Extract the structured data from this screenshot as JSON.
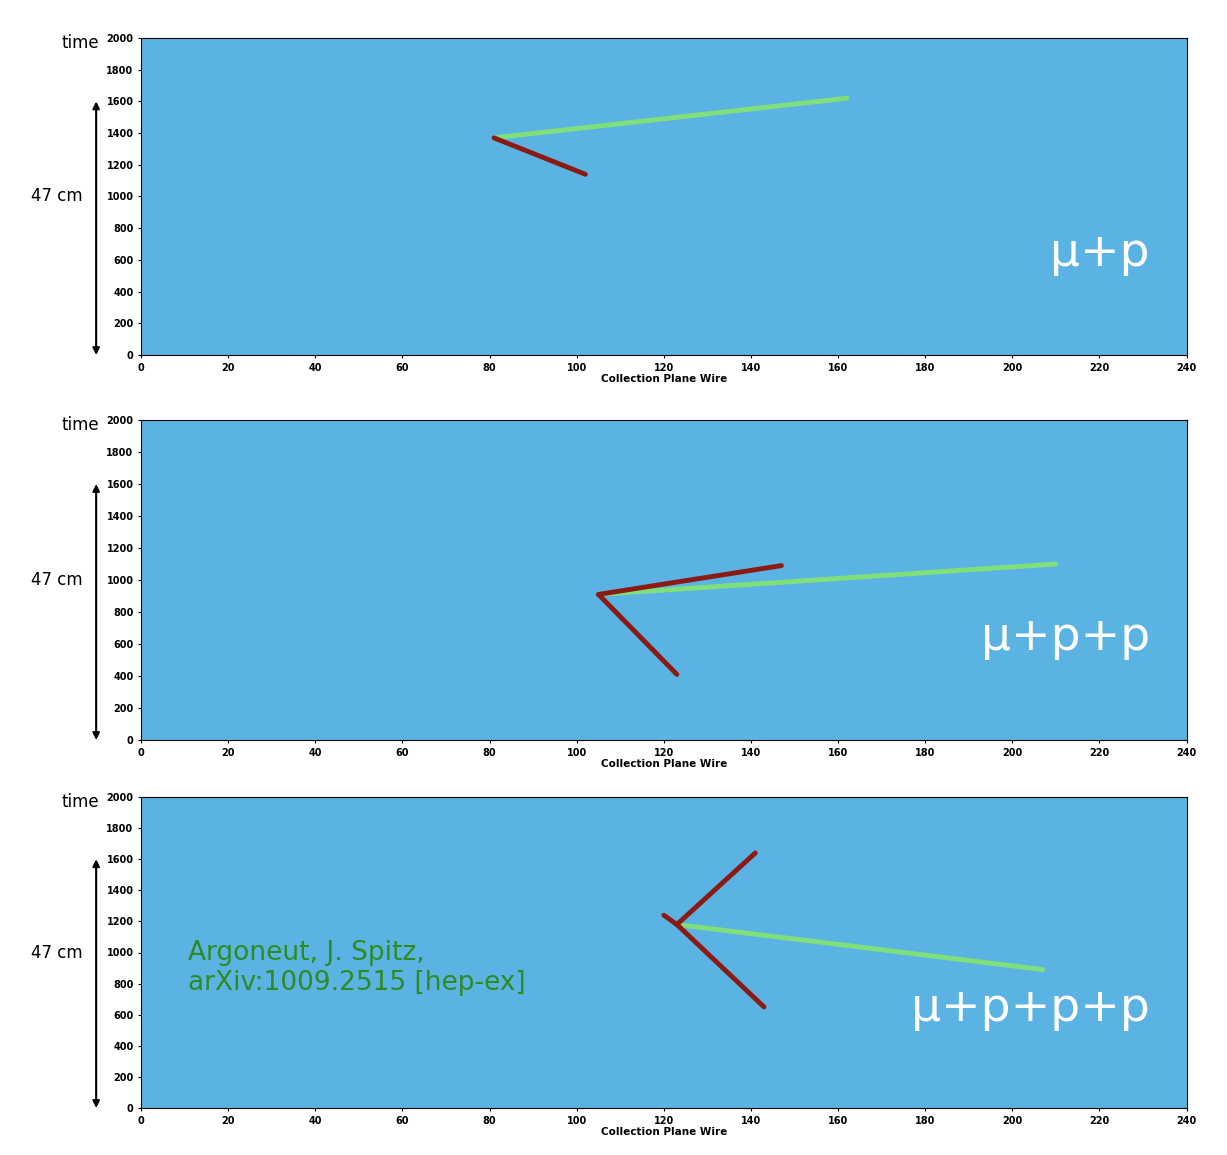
{
  "chart_data": [
    {
      "type": "line",
      "xlabel": "Collection Plane Wire",
      "ylabel": "time",
      "annotation": "μ+p",
      "scale_bar": {
        "label": "47 cm",
        "from": 0,
        "to": 1600
      },
      "xlim": [
        0,
        240
      ],
      "xticks": [
        0,
        20,
        40,
        60,
        80,
        100,
        120,
        140,
        160,
        180,
        200,
        220,
        240
      ],
      "ylim": [
        0,
        2000
      ],
      "yticks": [
        0,
        200,
        400,
        600,
        800,
        1000,
        1200,
        1400,
        1600,
        1800,
        2000
      ],
      "grid": false,
      "series": [
        {
          "color": "#7fe07a",
          "x": [
            81,
            162
          ],
          "values": [
            1370,
            1620
          ]
        },
        {
          "color": "#8b1a12",
          "x": [
            81,
            102
          ],
          "values": [
            1370,
            1140
          ]
        }
      ]
    },
    {
      "type": "line",
      "xlabel": "Collection Plane Wire",
      "ylabel": "time",
      "annotation": "μ+p+p",
      "scale_bar": {
        "label": "47 cm",
        "from": 0,
        "to": 1600
      },
      "xlim": [
        0,
        240
      ],
      "xticks": [
        0,
        20,
        40,
        60,
        80,
        100,
        120,
        140,
        160,
        180,
        200,
        220,
        240
      ],
      "ylim": [
        0,
        2000
      ],
      "yticks": [
        0,
        200,
        400,
        600,
        800,
        1000,
        1200,
        1400,
        1600,
        1800,
        2000
      ],
      "grid": false,
      "series": [
        {
          "color": "#7fe07a",
          "x": [
            105,
            210
          ],
          "values": [
            910,
            1100
          ]
        },
        {
          "color": "#8b1a12",
          "x": [
            105,
            147
          ],
          "values": [
            910,
            1090
          ]
        },
        {
          "color": "#8b1a12",
          "x": [
            105,
            123
          ],
          "values": [
            910,
            410
          ]
        }
      ]
    },
    {
      "type": "line",
      "xlabel": "Collection Plane Wire",
      "ylabel": "time",
      "annotation": "μ+p+p+p",
      "note": "Argoneut, J. Spitz,\narXiv:1009.2515 [hep-ex]",
      "scale_bar": {
        "label": "47 cm",
        "from": 0,
        "to": 1600
      },
      "xlim": [
        0,
        240
      ],
      "xticks": [
        0,
        20,
        40,
        60,
        80,
        100,
        120,
        140,
        160,
        180,
        200,
        220,
        240
      ],
      "ylim": [
        0,
        2000
      ],
      "yticks": [
        0,
        200,
        400,
        600,
        800,
        1000,
        1200,
        1400,
        1600,
        1800,
        2000
      ],
      "grid": false,
      "series": [
        {
          "color": "#7fe07a",
          "x": [
            123,
            207
          ],
          "values": [
            1180,
            890
          ]
        },
        {
          "color": "#8b1a12",
          "x": [
            123,
            141
          ],
          "values": [
            1180,
            1640
          ]
        },
        {
          "color": "#8b1a12",
          "x": [
            123,
            143
          ],
          "values": [
            1180,
            650
          ]
        },
        {
          "color": "#8b1a12",
          "x": [
            123,
            120
          ],
          "values": [
            1180,
            1240
          ]
        }
      ]
    }
  ]
}
